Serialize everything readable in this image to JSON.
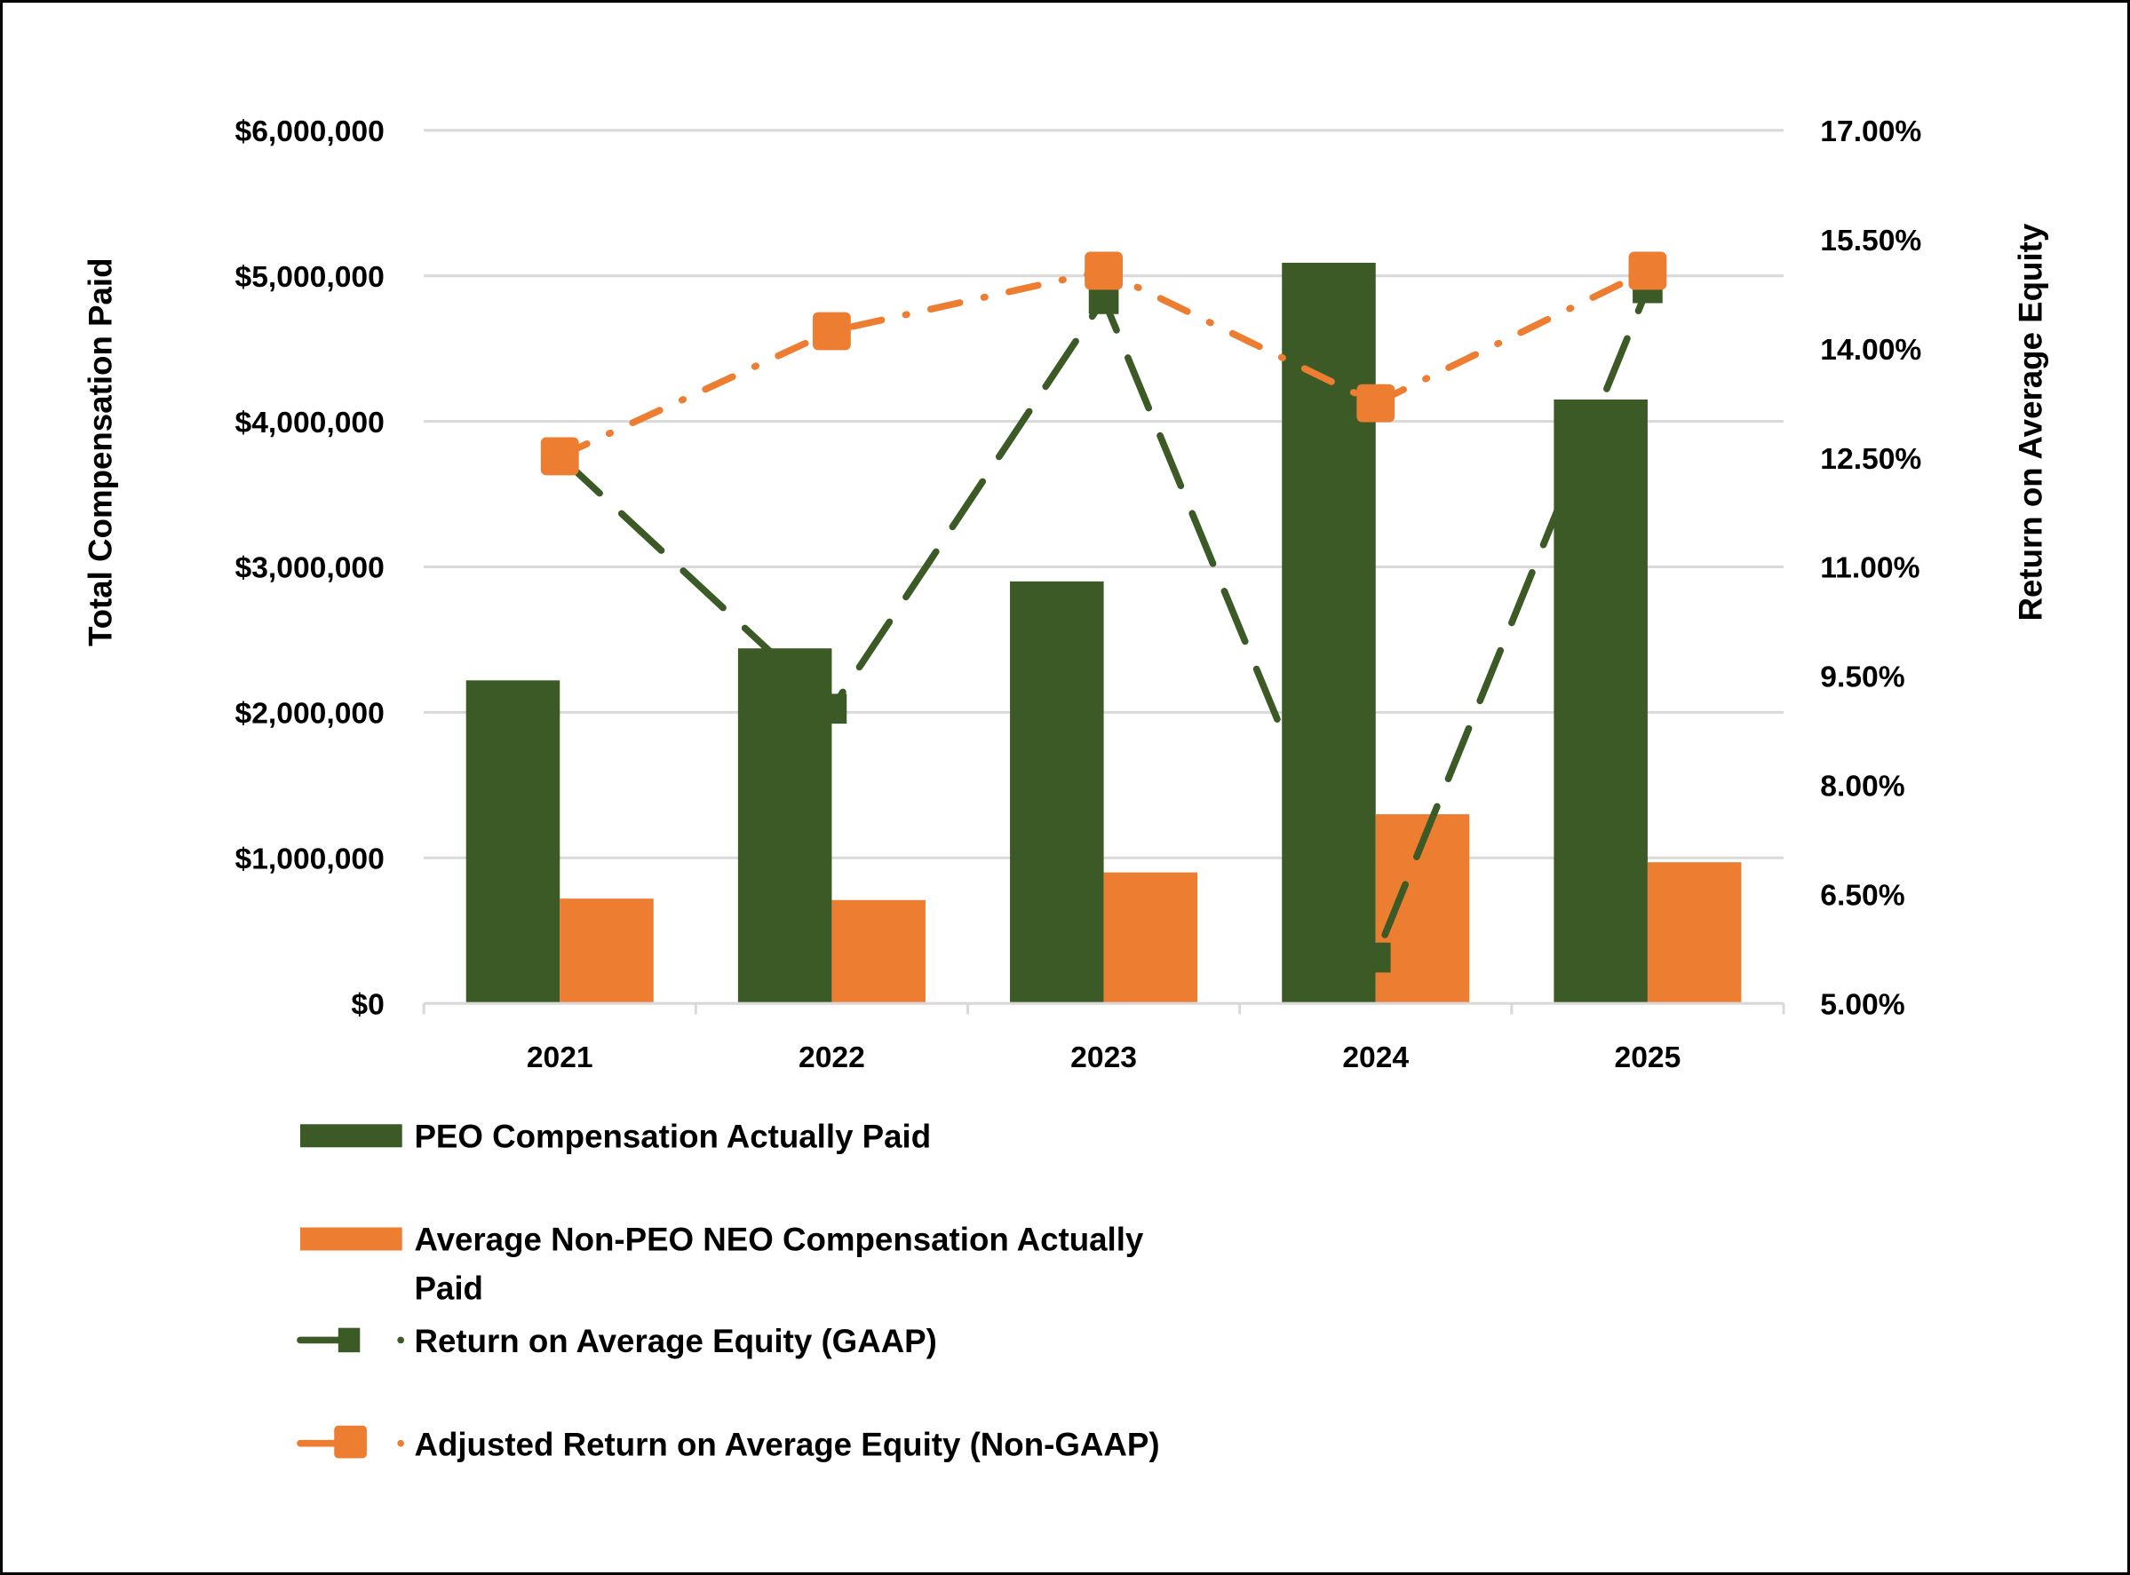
{
  "chart_data": {
    "type": "bar+line",
    "title": "",
    "categories": [
      "2021",
      "2022",
      "2023",
      "2024",
      "2025"
    ],
    "ylabel": "Total Compensation Paid",
    "y2label": "Return on Average Equity",
    "ylim": [
      0,
      6000000
    ],
    "y2lim": [
      5.0,
      17.0
    ],
    "yticks": [
      "$0",
      "$1,000,000",
      "$2,000,000",
      "$3,000,000",
      "$4,000,000",
      "$5,000,000",
      "$6,000,000"
    ],
    "y2ticks": [
      "5.00%",
      "6.50%",
      "8.00%",
      "9.50%",
      "11.00%",
      "12.50%",
      "14.00%",
      "15.50%",
      "17.00%"
    ],
    "grid": true,
    "legend_placement": "bottom-left",
    "bar_series": [
      {
        "name": "PEO Compensation Actually Paid",
        "color": "#3b5a25",
        "values": [
          2220000,
          2440000,
          2900000,
          5090000,
          4150000
        ]
      },
      {
        "name": "Average Non-PEO NEO Compensation Actually Paid",
        "name_line1": "Average Non-PEO NEO Compensation Actually",
        "name_line2": "Paid",
        "color": "#ed7d31",
        "values": [
          720000,
          710000,
          900000,
          1300000,
          970000
        ]
      }
    ],
    "line_series": [
      {
        "name": "Return on Average Equity (GAAP)",
        "color": "#3b5a25",
        "values": [
          12.52,
          9.05,
          14.68,
          5.63,
          14.83
        ]
      },
      {
        "name": "Adjusted Return on Average Equity (Non-GAAP)",
        "color": "#ed7d31",
        "values": [
          12.52,
          14.24,
          15.07,
          13.25,
          15.07
        ]
      }
    ]
  }
}
